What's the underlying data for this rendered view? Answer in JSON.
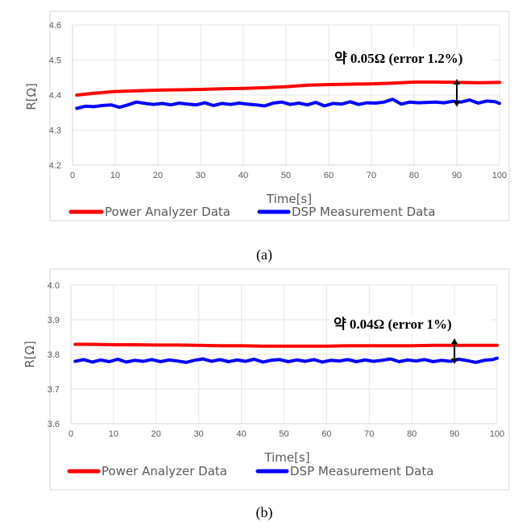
{
  "chart_data": [
    {
      "type": "line",
      "panel_label": "(a)",
      "xlabel": "Time[s]",
      "ylabel": "R[Ω]",
      "xlim": [
        0,
        100
      ],
      "ylim": [
        4.2,
        4.6
      ],
      "xticks": [
        "0",
        "10",
        "20",
        "30",
        "40",
        "50",
        "60",
        "70",
        "80",
        "90",
        "100"
      ],
      "yticks": [
        "4.2",
        "4.3",
        "4.4",
        "4.5",
        "4.6"
      ],
      "grid": true,
      "legend_position": "bottom",
      "annotation": "약 0.05Ω (error 1.2%)",
      "annotation_x": 90,
      "series": [
        {
          "name": "Power Analyzer Data",
          "color": "#ff0000",
          "x": [
            1,
            5,
            10,
            15,
            20,
            25,
            30,
            35,
            40,
            45,
            50,
            55,
            60,
            65,
            70,
            75,
            80,
            85,
            90,
            95,
            100
          ],
          "y": [
            4.4,
            4.405,
            4.41,
            4.412,
            4.414,
            4.415,
            4.416,
            4.418,
            4.419,
            4.421,
            4.424,
            4.428,
            4.43,
            4.431,
            4.432,
            4.434,
            4.437,
            4.437,
            4.436,
            4.435,
            4.436
          ]
        },
        {
          "name": "DSP Measurement Data",
          "color": "#0000ff",
          "x": [
            1,
            3,
            5,
            7,
            9,
            11,
            13,
            15,
            17,
            19,
            21,
            23,
            25,
            27,
            29,
            31,
            33,
            35,
            37,
            39,
            41,
            43,
            45,
            47,
            49,
            51,
            53,
            55,
            57,
            59,
            61,
            63,
            65,
            67,
            69,
            71,
            73,
            75,
            77,
            79,
            81,
            83,
            85,
            87,
            89,
            91,
            93,
            95,
            97,
            99,
            100
          ],
          "y": [
            4.362,
            4.368,
            4.367,
            4.37,
            4.372,
            4.365,
            4.372,
            4.38,
            4.376,
            4.373,
            4.376,
            4.372,
            4.377,
            4.374,
            4.372,
            4.378,
            4.37,
            4.376,
            4.373,
            4.377,
            4.374,
            4.372,
            4.369,
            4.377,
            4.38,
            4.373,
            4.377,
            4.372,
            4.379,
            4.369,
            4.376,
            4.374,
            4.381,
            4.373,
            4.378,
            4.377,
            4.38,
            4.388,
            4.374,
            4.38,
            4.378,
            4.379,
            4.38,
            4.378,
            4.382,
            4.38,
            4.386,
            4.377,
            4.383,
            4.381,
            4.376
          ]
        }
      ]
    },
    {
      "type": "line",
      "panel_label": "(b)",
      "xlabel": "Time[s]",
      "ylabel": "R[Ω]",
      "xlim": [
        0,
        100
      ],
      "ylim": [
        3.6,
        4.0
      ],
      "xticks": [
        "0",
        "10",
        "20",
        "30",
        "40",
        "50",
        "60",
        "70",
        "80",
        "90",
        "100"
      ],
      "yticks": [
        "3.6",
        "3.7",
        "3.8",
        "3.9",
        "4.0"
      ],
      "grid": true,
      "legend_position": "bottom",
      "annotation": "약 0.04Ω (error 1%)",
      "annotation_x": 90,
      "series": [
        {
          "name": "Power Analyzer Data",
          "color": "#ff0000",
          "x": [
            1,
            5,
            10,
            15,
            20,
            25,
            30,
            35,
            40,
            45,
            50,
            55,
            60,
            65,
            70,
            75,
            80,
            85,
            90,
            95,
            100
          ],
          "y": [
            3.829,
            3.829,
            3.828,
            3.828,
            3.827,
            3.827,
            3.826,
            3.825,
            3.825,
            3.824,
            3.824,
            3.824,
            3.824,
            3.825,
            3.825,
            3.825,
            3.825,
            3.826,
            3.826,
            3.826,
            3.826
          ]
        },
        {
          "name": "DSP Measurement Data",
          "color": "#0000ff",
          "x": [
            1,
            3,
            5,
            7,
            9,
            11,
            13,
            15,
            17,
            19,
            21,
            23,
            25,
            27,
            29,
            31,
            33,
            35,
            37,
            39,
            41,
            43,
            45,
            47,
            49,
            51,
            53,
            55,
            57,
            59,
            61,
            63,
            65,
            67,
            69,
            71,
            73,
            75,
            77,
            79,
            81,
            83,
            85,
            87,
            89,
            91,
            93,
            95,
            97,
            99,
            100
          ],
          "y": [
            3.78,
            3.785,
            3.778,
            3.784,
            3.779,
            3.786,
            3.778,
            3.783,
            3.78,
            3.785,
            3.779,
            3.784,
            3.781,
            3.777,
            3.783,
            3.787,
            3.78,
            3.785,
            3.779,
            3.784,
            3.78,
            3.786,
            3.778,
            3.783,
            3.785,
            3.779,
            3.784,
            3.78,
            3.785,
            3.778,
            3.783,
            3.781,
            3.785,
            3.779,
            3.784,
            3.78,
            3.783,
            3.787,
            3.779,
            3.784,
            3.781,
            3.785,
            3.779,
            3.783,
            3.78,
            3.786,
            3.782,
            3.777,
            3.783,
            3.785,
            3.789
          ]
        }
      ]
    }
  ]
}
